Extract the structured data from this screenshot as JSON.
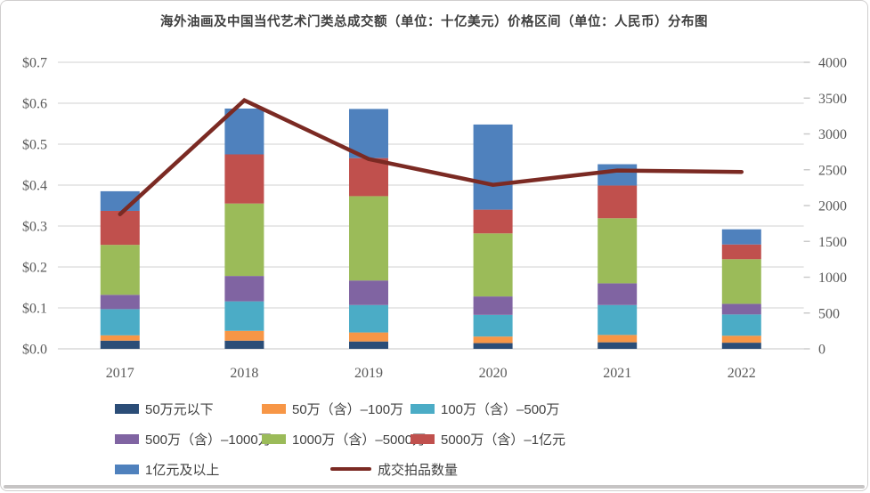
{
  "title": "海外油画及中国当代艺术门类总成交额（单位：十亿美元）价格区间（单位：人民币）分布图",
  "colors": {
    "grid": "#d9d9d9",
    "axis_line": "#d9d9d9",
    "right_tick": "#c8c8c8",
    "axis_text": "#595959",
    "title_text": "#3f3f3f",
    "legend_text": "#404040",
    "frame_border": "#d0cece",
    "bottom_strip": "#c6c4c4",
    "background": "#ffffff"
  },
  "chart_data": {
    "type": "bar",
    "combo": "stacked-bar+line",
    "title": "海外油画及中国当代艺术门类总成交额（单位：十亿美元）价格区间（单位：人民币）分布图",
    "categories": [
      "2017",
      "2018",
      "2019",
      "2020",
      "2021",
      "2022"
    ],
    "series": [
      {
        "name": "50万元以下",
        "color": "#2b4d77",
        "values": [
          0.02,
          0.02,
          0.018,
          0.014,
          0.016,
          0.015
        ]
      },
      {
        "name": "50万（含）–100万",
        "color": "#f79646",
        "values": [
          0.013,
          0.024,
          0.022,
          0.016,
          0.018,
          0.017
        ]
      },
      {
        "name": "100万（含）–500万",
        "color": "#4bacc6",
        "values": [
          0.064,
          0.072,
          0.067,
          0.053,
          0.073,
          0.052
        ]
      },
      {
        "name": "500万（含）–1000万",
        "color": "#8064a2",
        "values": [
          0.035,
          0.062,
          0.06,
          0.045,
          0.053,
          0.026
        ]
      },
      {
        "name": "1000万（含）–5000万",
        "color": "#9bbb59",
        "values": [
          0.122,
          0.177,
          0.206,
          0.154,
          0.159,
          0.109
        ]
      },
      {
        "name": "5000万（含）–1亿元",
        "color": "#c0504d",
        "values": [
          0.083,
          0.12,
          0.093,
          0.058,
          0.08,
          0.036
        ]
      },
      {
        "name": "1亿元及以上",
        "color": "#4f81bd",
        "values": [
          0.048,
          0.112,
          0.12,
          0.208,
          0.052,
          0.037
        ]
      }
    ],
    "line_series": {
      "name": "成交拍品数量",
      "color": "#7b2a23",
      "axis": "right",
      "values": [
        1880,
        3470,
        2650,
        2290,
        2490,
        2470
      ]
    },
    "left_axis": {
      "ticks": [
        "$0.0",
        "$0.1",
        "$0.2",
        "$0.3",
        "$0.4",
        "$0.5",
        "$0.6",
        "$0.7"
      ],
      "min": 0,
      "max": 0.7,
      "step": 0.1
    },
    "right_axis": {
      "ticks": [
        "0",
        "500",
        "1000",
        "1500",
        "2000",
        "2500",
        "3000",
        "3500",
        "4000"
      ],
      "min": 0,
      "max": 4000,
      "step": 500
    },
    "legend_position": "bottom",
    "grid": "horizontal"
  }
}
